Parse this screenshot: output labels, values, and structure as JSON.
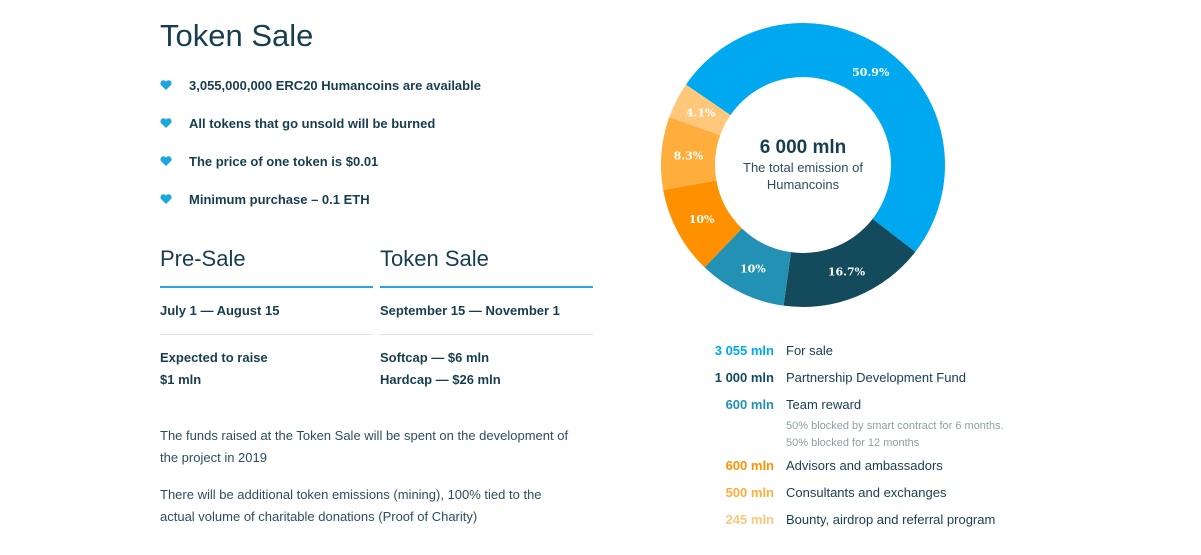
{
  "header": {
    "title": "Token Sale"
  },
  "bullets": [
    "3,055,000,000 ERC20 Humancoins are available",
    "All tokens that go unsold will be burned",
    "The price of one token is $0.01",
    "Minimum purchase – 0.1 ETH"
  ],
  "presale": {
    "title": "Pre-Sale",
    "dates": "July 1 — August 15",
    "raise_line1": "Expected to raise",
    "raise_line2": "$1 mln"
  },
  "tokensale": {
    "title": "Token Sale",
    "dates": "September 15 — November 1",
    "softcap": "Softcap — $6 mln",
    "hardcap": "Hardcap — $26 mln"
  },
  "paragraphs": {
    "funds_line1": "The funds raised at the Token Sale will be spent on the development of",
    "funds_line2": "the project in 2019",
    "mining_line1": "There will be additional token emissions (mining), 100% tied to the",
    "mining_line2": "actual volume of charitable donations (Proof of Charity)"
  },
  "chart_data": {
    "type": "pie",
    "center_value": "6 000 mln",
    "center_line1": "The total emission of",
    "center_line2": "Humancoins",
    "slices": [
      {
        "label": "50.9%",
        "value": 50.9,
        "color": "#00a8f0"
      },
      {
        "label": "16.7%",
        "value": 16.7,
        "color": "#134b5c"
      },
      {
        "label": "10%",
        "value": 10,
        "color": "#2391b3"
      },
      {
        "label": "10%",
        "value": 10,
        "color": "#ff9100"
      },
      {
        "label": "8.3%",
        "value": 8.3,
        "color": "#ffad3d"
      },
      {
        "label": "4.1%",
        "value": 4.1,
        "color": "#ffc77a"
      }
    ]
  },
  "legend": {
    "for_sale": {
      "amount": "3 055 mln",
      "label": "For sale",
      "color": "#00a8f0"
    },
    "partnership": {
      "amount": "1 000 mln",
      "label": "Partnership Development Fund",
      "color": "#134b5c"
    },
    "team": {
      "amount": "600 mln",
      "label": "Team reward",
      "color": "#2391b3",
      "note1": "50% blocked by smart contract for 6 months.",
      "note2": "50% blocked for 12 months"
    },
    "advisors": {
      "amount": "600 mln",
      "label": "Advisors and ambassadors",
      "color": "#ff9100"
    },
    "consultants": {
      "amount": "500 mln",
      "label": "Consultants and exchanges",
      "color": "#ffad3d"
    },
    "bounty": {
      "amount": "245 mln",
      "label": "Bounty, airdrop and referral program",
      "color": "#ffc77a"
    }
  },
  "colors": {
    "accent": "#27a5dc",
    "text": "#173e4f",
    "heart": "#1aa7e0"
  }
}
